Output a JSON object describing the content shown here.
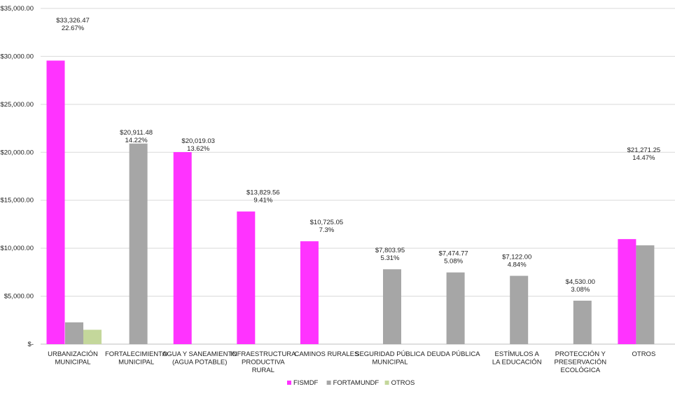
{
  "chart_data": {
    "type": "bar",
    "categories": [
      [
        "URBANIZACIÓN",
        "MUNICIPAL"
      ],
      [
        "FORTALECIMIENTO",
        "MUNICIPAL"
      ],
      [
        "AGUA Y SANEAMIENTO",
        "(AGUA POTABLE)"
      ],
      [
        "INFRAESTRUCTURA",
        "PRODUCTIVA",
        "RURAL"
      ],
      [
        "CAMINOS RURALES"
      ],
      [
        "SEGURIDAD PÚBLICA",
        "MUNICIPAL"
      ],
      [
        "DEUDA PÚBLICA"
      ],
      [
        "ESTÍMULOS A",
        "LA EDUCACIÓN"
      ],
      [
        "PROTECCIÓN Y",
        "PRESERVACIÓN",
        "ECOLÓGICA"
      ],
      [
        "OTROS"
      ]
    ],
    "series": [
      {
        "name": "FISMDF",
        "color": "#ff33ff",
        "values": [
          29560,
          0,
          20019.03,
          13829.56,
          10725.05,
          0,
          0,
          0,
          0,
          10950
        ]
      },
      {
        "name": "FORTAMUNDF",
        "color": "#a6a6a6",
        "values": [
          2270,
          20911.48,
          0,
          0,
          0,
          7803.95,
          7474.77,
          7122.0,
          4530.0,
          10300
        ]
      },
      {
        "name": "OTROS",
        "color": "#c4d79b",
        "values": [
          1500,
          0,
          0,
          0,
          0,
          0,
          0,
          0,
          0,
          0
        ]
      }
    ],
    "annotations": [
      [
        "$33,326.47",
        "22.67%"
      ],
      [
        "$20,911.48",
        "14.22%"
      ],
      [
        "$20,019.03",
        "13.62%"
      ],
      [
        "$13,829.56",
        "9.41%"
      ],
      [
        "$10,725.05",
        "7.3%"
      ],
      [
        "$7,803.95",
        "5.31%"
      ],
      [
        "$7,474.77",
        "5.08%"
      ],
      [
        "$7,122.00",
        "4.84%"
      ],
      [
        "$4,530.00",
        "3.08%"
      ],
      [
        "$21,271.25",
        "14.47%"
      ]
    ],
    "yticks": [
      {
        "value": 0,
        "label": "$-"
      },
      {
        "value": 5000,
        "label": "$5,000.00"
      },
      {
        "value": 10000,
        "label": "$10,000.00"
      },
      {
        "value": 15000,
        "label": "$15,000.00"
      },
      {
        "value": 20000,
        "label": "$20,000.00"
      },
      {
        "value": 25000,
        "label": "$25,000.00"
      },
      {
        "value": 30000,
        "label": "$30,000.00"
      },
      {
        "value": 35000,
        "label": "$35,000.00"
      }
    ],
    "ylim": [
      0,
      35000
    ],
    "grid": true,
    "legend_position": "bottom"
  }
}
